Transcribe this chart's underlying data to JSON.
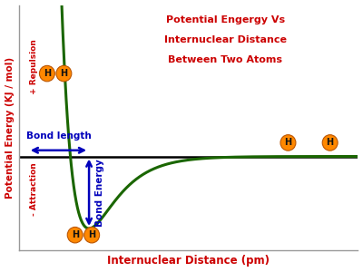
{
  "title_line1": "Potential Engergy Vs",
  "title_line2": "Internuclear Distance",
  "title_line3": "Between Two Atoms",
  "xlabel": "Internuclear Distance (pm)",
  "ylabel": "Potential Energy (KJ / mol)",
  "ylabel_color": "#cc0000",
  "xlabel_color": "#cc0000",
  "title_color": "#cc0000",
  "curve_color": "#1a6600",
  "zero_line_color": "#000000",
  "bond_length_color": "#0000bb",
  "bond_energy_color": "#0000bb",
  "repulsion_color": "#cc0000",
  "attraction_color": "#cc0000",
  "atom_color": "#ff8800",
  "atom_text_color": "#111111",
  "background_color": "#ffffff",
  "repulsion_label": "+ Repulsion",
  "attraction_label": "- Attraction",
  "bond_length_label": "Bond length",
  "bond_energy_label": "Bond Energy",
  "atom_label": "H",
  "xlim": [
    0.0,
    10.0
  ],
  "ylim": [
    -2.6,
    4.2
  ],
  "zero_y": 0.0,
  "min_x": 2.3,
  "min_y": -2.0,
  "bond_length_x_start": 0.55,
  "bond_length_x_end": 2.3,
  "bond_energy_x": 2.3
}
